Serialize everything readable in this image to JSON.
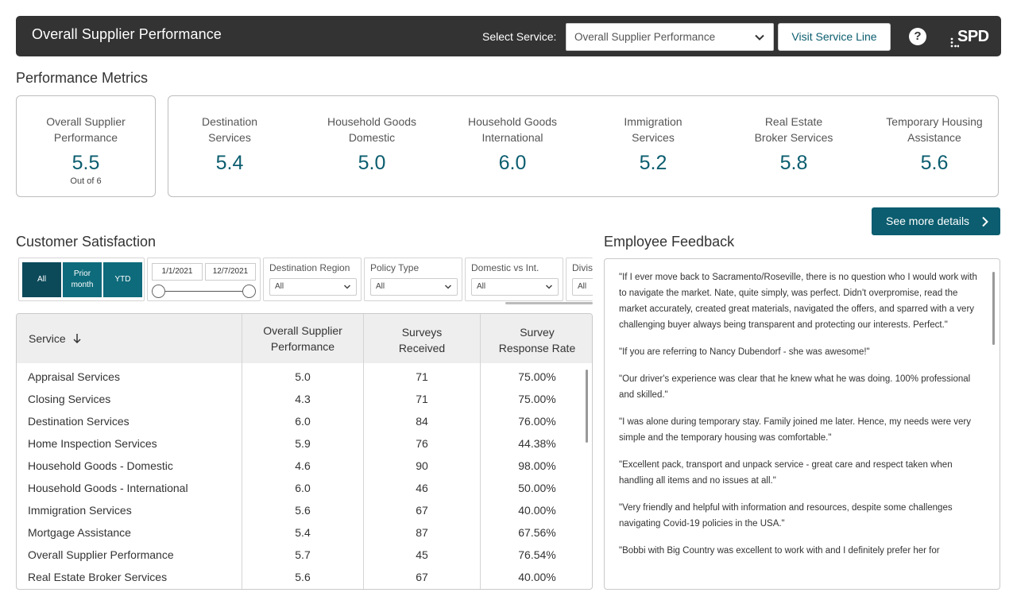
{
  "header": {
    "title": "Overall Supplier Performance",
    "select_label": "Select Service:",
    "select_value": "Overall Supplier Performance",
    "visit_button": "Visit Service Line",
    "help": "?",
    "logo": "SPD"
  },
  "metrics": {
    "heading": "Performance Metrics",
    "main": {
      "label_line1": "Overall Supplier",
      "label_line2": "Performance",
      "value": "5.5",
      "sub": "Out of 6"
    },
    "items": [
      {
        "line1": "Destination",
        "line2": "Services",
        "value": "5.4"
      },
      {
        "line1": "Household Goods",
        "line2": "Domestic",
        "value": "5.0"
      },
      {
        "line1": "Household Goods",
        "line2": "International",
        "value": "6.0"
      },
      {
        "line1": "Immigration",
        "line2": "Services",
        "value": "5.2"
      },
      {
        "line1": "Real Estate",
        "line2": "Broker Services",
        "value": "5.8"
      },
      {
        "line1": "Temporary Housing",
        "line2": "Assistance",
        "value": "5.6"
      }
    ],
    "details_button": "See more details"
  },
  "satisfaction": {
    "heading": "Customer Satisfaction",
    "period_buttons": {
      "all": "All",
      "prior_line1": "Prior",
      "prior_line2": "month",
      "ytd": "YTD"
    },
    "date_start": "1/1/2021",
    "date_end": "12/7/2021",
    "filters": [
      {
        "label": "Destination Region",
        "value": "All"
      },
      {
        "label": "Policy Type",
        "value": "All"
      },
      {
        "label": "Domestic vs Int.",
        "value": "All"
      },
      {
        "label": "Divis",
        "value": "All"
      }
    ],
    "table": {
      "headers": {
        "service": "Service",
        "osp_line1": "Overall Supplier",
        "osp_line2": "Performance",
        "surveys_line1": "Surveys",
        "surveys_line2": "Received",
        "rate_line1": "Survey",
        "rate_line2": "Response Rate"
      },
      "rows": [
        {
          "service": "Appraisal Services",
          "osp": "5.0",
          "surveys": "71",
          "rate": "75.00%"
        },
        {
          "service": "Closing Services",
          "osp": "4.3",
          "surveys": "71",
          "rate": "75.00%"
        },
        {
          "service": "Destination Services",
          "osp": "6.0",
          "surveys": "84",
          "rate": "76.00%"
        },
        {
          "service": "Home Inspection Services",
          "osp": "5.9",
          "surveys": "76",
          "rate": "44.38%"
        },
        {
          "service": "Household Goods - Domestic",
          "osp": "4.6",
          "surveys": "90",
          "rate": "98.00%"
        },
        {
          "service": "Household Goods - International",
          "osp": "6.0",
          "surveys": "46",
          "rate": "50.00%"
        },
        {
          "service": "Immigration Services",
          "osp": "5.6",
          "surveys": "67",
          "rate": "40.00%"
        },
        {
          "service": "Mortgage Assistance",
          "osp": "5.4",
          "surveys": "87",
          "rate": "67.56%"
        },
        {
          "service": "Overall Supplier Performance",
          "osp": "5.7",
          "surveys": "45",
          "rate": "76.54%"
        },
        {
          "service": "Real Estate Broker Services",
          "osp": "5.6",
          "surveys": "67",
          "rate": "40.00%"
        }
      ]
    }
  },
  "feedback": {
    "heading": "Employee Feedback",
    "items": [
      "\"If I ever move back to Sacramento/Roseville, there is no question who I would work with to navigate the market.  Nate, quite simply, was perfect.  Didn't overpromise, read the market accurately, created great materials, navigated the offers, and sparred with a very challenging buyer always being transparent and protecting our interests.  Perfect.\"",
      "\"If you are referring to Nancy Dubendorf - she was awesome!\"",
      "\"Our driver's experience was clear that he knew what he was doing.  100% professional and skilled.\"",
      "\"I was alone during temporary stay. Family joined me later. Hence, my needs were very simple and the temporary housing was comfortable.\"",
      "\"Excellent pack, transport and unpack service - great care and respect taken when handling all items and no issues at all.\"",
      "\"Very friendly and helpful with information and resources, despite some challenges navigating Covid-19 policies in the USA.\"",
      "\"Bobbi with Big Country was excellent to work with and I definitely prefer her for"
    ]
  },
  "colors": {
    "header_bg": "#333333",
    "accent": "#0b5d6f",
    "button_bg": "#0e6b7b",
    "button_active": "#0c4a5a"
  }
}
